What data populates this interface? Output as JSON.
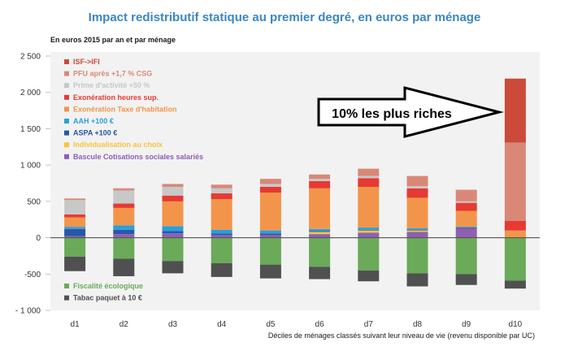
{
  "chart_data": {
    "type": "bar",
    "stacked": true,
    "title": "Impact redistributif statique au premier degré, en euros par ménage",
    "subtitle": "En euros 2015 par an et par ménage",
    "xlabel": "Déciles de ménages classés  suivant leur niveau de vie (revenu disponible par UC)",
    "ylabel": "",
    "ylim": [
      -1000,
      2500
    ],
    "yticks": [
      -1000,
      -500,
      0,
      500,
      1000,
      1500,
      2000,
      2500
    ],
    "ytick_labels": [
      "- 1 000",
      "-500",
      "0",
      "500",
      "1 000",
      "1 500",
      "2 000",
      "2 500"
    ],
    "grid": false,
    "legend_placement": "top-left and bottom-left",
    "categories": [
      "d1",
      "d2",
      "d3",
      "d4",
      "d5",
      "d6",
      "d7",
      "d8",
      "d9",
      "d10"
    ],
    "positive_series": [
      {
        "name": "Bascule Cotisations sociales salariés",
        "color": "#8e5fb3",
        "values": [
          20,
          50,
          60,
          40,
          40,
          50,
          70,
          80,
          130,
          0
        ]
      },
      {
        "name": "Individualisation au choix",
        "color": "#f7c43a",
        "values": [
          0,
          0,
          0,
          0,
          0,
          30,
          30,
          20,
          0,
          0
        ]
      },
      {
        "name": "ASPA +100 €",
        "color": "#2a56a8",
        "values": [
          100,
          60,
          30,
          20,
          20,
          10,
          10,
          10,
          10,
          0
        ]
      },
      {
        "name": "AAH +100 €",
        "color": "#2aa0dd",
        "values": [
          30,
          60,
          70,
          50,
          40,
          30,
          30,
          20,
          10,
          0
        ]
      },
      {
        "name": "Exonération Taxe d'habitation",
        "color": "#f2954a",
        "values": [
          130,
          240,
          340,
          420,
          520,
          560,
          560,
          420,
          220,
          100
        ]
      },
      {
        "name": "Exonération heures sup.",
        "color": "#e63a33",
        "values": [
          40,
          60,
          80,
          80,
          80,
          100,
          120,
          130,
          110,
          130
        ]
      },
      {
        "name": "Prime d'activité +50 %",
        "color": "#c8c8c8",
        "values": [
          200,
          180,
          120,
          70,
          40,
          30,
          30,
          30,
          20,
          0
        ]
      },
      {
        "name": "PFU après +1,7 % CSG",
        "color": "#d98878",
        "values": [
          20,
          30,
          40,
          50,
          70,
          60,
          100,
          140,
          160,
          1080
        ]
      },
      {
        "name": "ISF->IFI",
        "color": "#cc4a3a",
        "values": [
          0,
          0,
          0,
          0,
          0,
          0,
          0,
          0,
          0,
          880
        ]
      }
    ],
    "negative_series": [
      {
        "name": "Fiscalité écologique",
        "color": "#6aaa58",
        "values": [
          -260,
          -290,
          -320,
          -350,
          -370,
          -400,
          -450,
          -490,
          -500,
          -590
        ]
      },
      {
        "name": "Tabac paquet à 10 €",
        "color": "#505050",
        "values": [
          -200,
          -240,
          -170,
          -190,
          -190,
          -170,
          -150,
          -180,
          -150,
          -110
        ]
      }
    ],
    "legend_top": [
      "ISF->IFI",
      "PFU après +1,7 % CSG",
      "Prime d'activité +50 %",
      "Exonération heures sup.",
      "Exonération Taxe d'habitation",
      "AAH +100 €",
      "ASPA +100 €",
      "Individualisation au choix",
      "Bascule Cotisations sociales salariés"
    ],
    "legend_bottom": [
      "Fiscalité écologique",
      "Tabac paquet à 10 €"
    ],
    "annotation": {
      "text": "10% les plus riches",
      "points_to": "d10"
    }
  }
}
